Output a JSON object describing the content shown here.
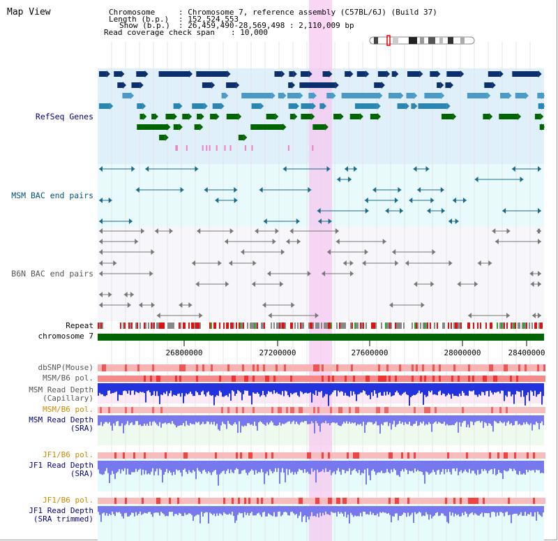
{
  "view_title": "Map View",
  "header": {
    "chromosome_label": "Chromosome",
    "chromosome_value": ": Chromosome 7, reference assembly (C57BL/6J) (Build 37)",
    "length_label": "Length (b.p.)",
    "length_value": ": 152,524,553",
    "show_label": "Show (b.p.)",
    "show_value": ": 26,459,490-28,569,498 : 2,110,009 bp",
    "coverage_label": "Read coverage check span",
    "coverage_value": ": 10,000"
  },
  "tracks": {
    "refseq": "RefSeq Genes",
    "msm_bac": "MSM BAC end pairs",
    "b6n_bac": "B6N BAC end pairs",
    "repeat": "Repeat",
    "chromosome": "chromosome 7",
    "dbsnp": "dbSNP(Mouse)",
    "msm_b6_pol_1": "MSM/B6 pol.",
    "msm_depth_cap_1": "MSM Read Depth",
    "msm_depth_cap_2": "(Capillary)",
    "msm_b6_pol_2": "MSM/B6 pol.",
    "msm_depth_sra_1": "MSM Read Depth",
    "msm_depth_sra_2": "(SRA)",
    "jf1_b6_pol_1": "JF1/B6 pol.",
    "jf1_depth_sra_1": "JF1 Read Depth",
    "jf1_depth_sra_2": "(SRA)",
    "jf1_b6_pol_2": "JF1/B6 pol.",
    "jf1_depth_trim_1": "JF1 Read Depth",
    "jf1_depth_trim_2": "(SRA trimmed)"
  },
  "axis_ticks": [
    "26800000",
    "27200000",
    "27600000",
    "28000000",
    "28400000"
  ],
  "colors": {
    "refseq_dark": "#0a2f6a",
    "refseq_mid": "#2a86b0",
    "refseq_light": "#4a9ac8",
    "refseq_green": "#006400",
    "msm_bac": "#1a6a8a",
    "b6n_bac": "#777777",
    "highlight": "#f5c8f0",
    "chromosome_bar": "#006400",
    "depth_capillary": "#2233dd",
    "depth_sra": "#7777ee",
    "label_blue": "#000080",
    "label_orange": "#cc8800"
  }
}
